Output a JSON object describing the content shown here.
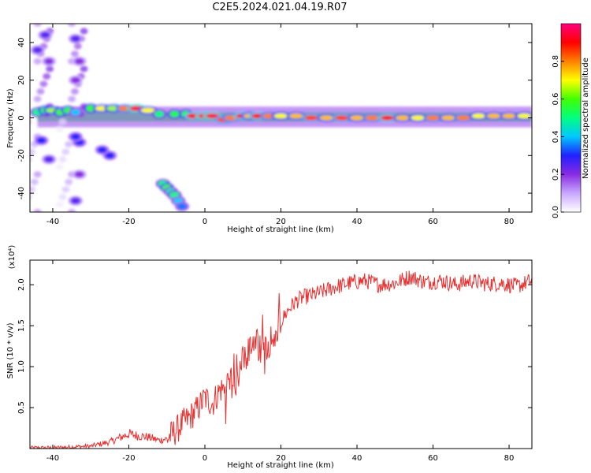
{
  "figure": {
    "title": "C2E5.2024.021.04.19.R07"
  },
  "colorbar": {
    "label": "Normalized spectral amplitude",
    "range": [
      0,
      1
    ],
    "ticks": [
      "0.0",
      "0.2",
      "0.4",
      "0.6",
      "0.8"
    ],
    "tick_values": [
      0.0,
      0.2,
      0.4,
      0.6,
      0.8
    ],
    "colormap": [
      "#ffffff",
      "#c8a8ff",
      "#8a2be2",
      "#2020ff",
      "#00c8ff",
      "#00ff80",
      "#40ff00",
      "#ffff00",
      "#ff8000",
      "#ff0000",
      "#ff007f"
    ]
  },
  "chart_data": [
    {
      "type": "heatmap",
      "title": "C2E5.2024.021.04.19.R07",
      "xlabel": "Height of straight line (km)",
      "ylabel": "Frequency (Hz)",
      "xlim": [
        -46,
        86
      ],
      "ylim": [
        -50,
        50
      ],
      "xticks": [
        -40,
        -20,
        0,
        20,
        40,
        60,
        80
      ],
      "xtick_labels": [
        "-40",
        "-20",
        "0",
        "20",
        "40",
        "60",
        "80"
      ],
      "yticks": [
        -40,
        -20,
        0,
        20,
        40
      ],
      "ytick_labels": [
        "-40",
        "-20",
        "0",
        "20",
        "40"
      ],
      "features": [
        {
          "name": "strong band near 0 Hz",
          "x_range": [
            -44,
            86
          ],
          "freq_center": 1,
          "amplitude": 0.85
        },
        {
          "name": "band segment",
          "x_range": [
            -31,
            -22
          ],
          "freq_center": 5,
          "amplitude": 0.7
        },
        {
          "name": "band segment",
          "x_range": [
            -22,
            -14
          ],
          "freq_center": 5,
          "amplitude": 0.9
        },
        {
          "name": "diagonal streak",
          "x_range": [
            -12,
            -5
          ],
          "freq_range": [
            -35,
            -48
          ],
          "amplitude": 0.5
        },
        {
          "name": "vertical smear",
          "x_center": -42,
          "amplitude": 0.35
        },
        {
          "name": "vertical smear",
          "x_center": -33,
          "amplitude": 0.35
        }
      ],
      "cells": [
        [
          -44,
          3,
          0.5
        ],
        [
          -42,
          4,
          0.6
        ],
        [
          -40,
          4,
          0.65
        ],
        [
          -38,
          3,
          0.6
        ],
        [
          -36,
          4,
          0.55
        ],
        [
          -34,
          3,
          0.4
        ],
        [
          -30,
          5,
          0.6
        ],
        [
          -27,
          5,
          0.7
        ],
        [
          -24,
          5,
          0.65
        ],
        [
          -21,
          5,
          0.8
        ],
        [
          -18,
          5,
          0.95
        ],
        [
          -15,
          4,
          0.7
        ],
        [
          -12,
          2,
          0.5
        ],
        [
          -8,
          2,
          0.55
        ],
        [
          -5,
          2,
          0.6
        ],
        [
          -3,
          1,
          0.9
        ],
        [
          0,
          1,
          0.95
        ],
        [
          2,
          1,
          0.95
        ],
        [
          5,
          -1,
          0.85
        ],
        [
          7,
          0,
          0.8
        ],
        [
          10,
          1,
          0.9
        ],
        [
          12,
          1,
          0.75
        ],
        [
          14,
          1,
          0.9
        ],
        [
          17,
          1,
          0.8
        ],
        [
          20,
          1,
          0.7
        ],
        [
          24,
          1,
          0.75
        ],
        [
          28,
          0,
          0.85
        ],
        [
          32,
          0,
          0.75
        ],
        [
          36,
          0,
          0.85
        ],
        [
          40,
          0,
          0.75
        ],
        [
          44,
          0,
          0.8
        ],
        [
          48,
          0,
          0.9
        ],
        [
          52,
          0,
          0.75
        ],
        [
          56,
          0,
          0.7
        ],
        [
          60,
          0,
          0.8
        ],
        [
          64,
          0,
          0.75
        ],
        [
          68,
          0,
          0.8
        ],
        [
          72,
          1,
          0.7
        ],
        [
          76,
          1,
          0.75
        ],
        [
          80,
          1,
          0.75
        ],
        [
          84,
          1,
          0.7
        ],
        [
          -11,
          -35,
          0.5
        ],
        [
          -10,
          -37,
          0.55
        ],
        [
          -9,
          -39,
          0.45
        ],
        [
          -8,
          -41,
          0.5
        ],
        [
          -7,
          -44,
          0.4
        ],
        [
          -6,
          -47,
          0.35
        ],
        [
          -25,
          -20,
          0.3
        ],
        [
          -27,
          -17,
          0.3
        ],
        [
          -33,
          -13,
          0.3
        ],
        [
          -34,
          -10,
          0.3
        ],
        [
          -42,
          44,
          0.25
        ],
        [
          -44,
          36,
          0.25
        ],
        [
          -41,
          30,
          0.2
        ],
        [
          -43,
          -12,
          0.3
        ],
        [
          -41,
          -22,
          0.25
        ],
        [
          -34,
          42,
          0.25
        ],
        [
          -33,
          30,
          0.2
        ],
        [
          -34,
          20,
          0.2
        ],
        [
          -33,
          -30,
          0.2
        ],
        [
          -34,
          -44,
          0.25
        ]
      ]
    },
    {
      "type": "line",
      "xlabel": "Height of straight line (km)",
      "ylabel": "SNR (10 * v/v)",
      "y_multiplier": "(x10⁴)",
      "color": "#e83030",
      "xlim": [
        -46,
        86
      ],
      "ylim": [
        0,
        2.3
      ],
      "xticks": [
        -40,
        -20,
        0,
        20,
        40,
        60,
        80
      ],
      "xtick_labels": [
        "-40",
        "-20",
        "0",
        "20",
        "40",
        "60",
        "80"
      ],
      "yticks": [
        0.5,
        1.0,
        1.5,
        2.0
      ],
      "ytick_labels": [
        "0.5",
        "1.0",
        "1.5",
        "2.0"
      ],
      "x": [
        -46,
        -40,
        -35,
        -30,
        -25,
        -22,
        -20,
        -18,
        -15,
        -12,
        -10,
        -8,
        -6,
        -4,
        -2,
        0,
        2,
        4,
        6,
        8,
        10,
        12,
        14,
        16,
        18,
        20,
        22,
        24,
        26,
        28,
        30,
        34,
        38,
        42,
        46,
        50,
        54,
        58,
        62,
        66,
        70,
        74,
        78,
        82,
        86
      ],
      "y": [
        0.01,
        0.01,
        0.02,
        0.03,
        0.08,
        0.14,
        0.18,
        0.16,
        0.14,
        0.1,
        0.12,
        0.2,
        0.3,
        0.38,
        0.48,
        0.62,
        0.55,
        0.72,
        0.75,
        0.95,
        1.1,
        1.2,
        1.3,
        1.25,
        1.35,
        1.55,
        1.7,
        1.8,
        1.85,
        1.87,
        1.9,
        1.97,
        2.02,
        2.05,
        2.0,
        2.02,
        2.1,
        2.03,
        2.05,
        2.0,
        2.05,
        2.01,
        2.02,
        1.98,
        2.05
      ]
    }
  ]
}
